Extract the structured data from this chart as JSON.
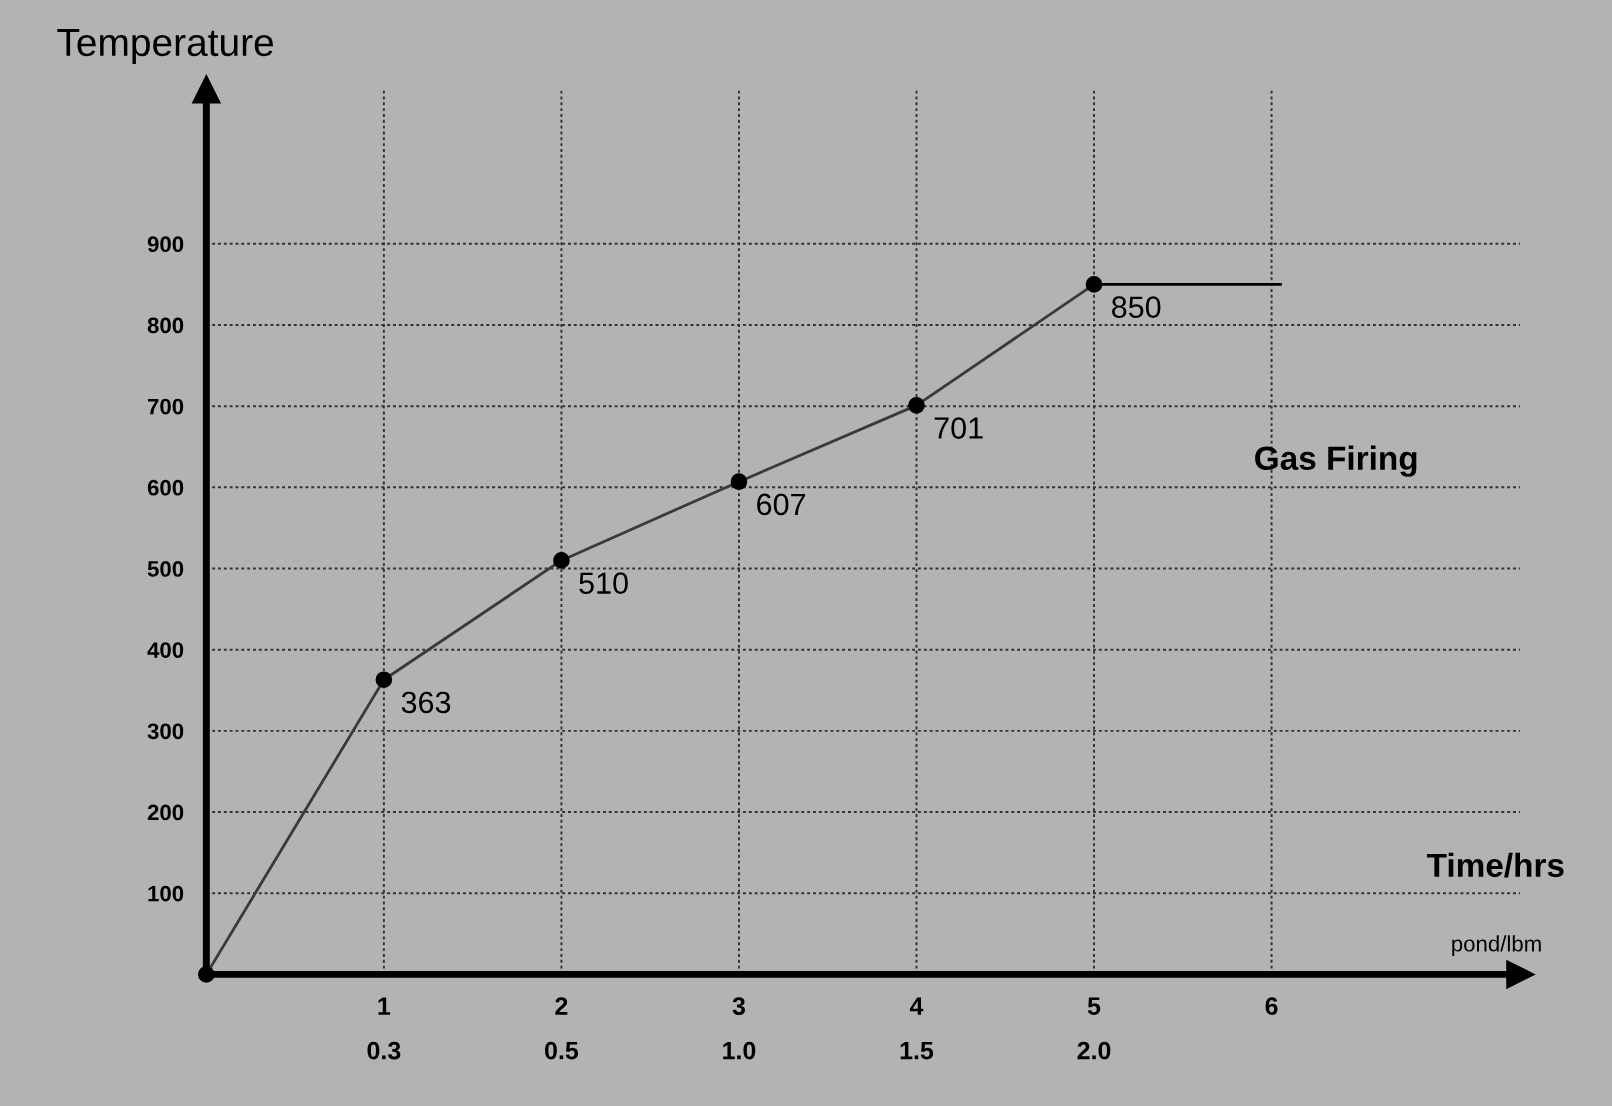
{
  "chart_data": {
    "type": "line",
    "ylabel": "Temperature",
    "xlabel": "Time/hrs",
    "annotations": [
      "Gas Firing",
      "pond/lbm",
      "0.3",
      "0.5",
      "1.0",
      "1.5",
      "2.0"
    ],
    "x": [
      0,
      1,
      2,
      3,
      4,
      5
    ],
    "series": [
      {
        "color": "#3a3a3a",
        "values": [
          0,
          363,
          510,
          607,
          701,
          850
        ],
        "value_labels": [
          null,
          "363",
          "510",
          "607",
          "701",
          "850"
        ],
        "marker": "circle"
      },
      {
        "color": "#000000",
        "x": [
          5,
          6.05
        ],
        "values": [
          850,
          850
        ]
      }
    ],
    "xlim": [
      0,
      7.4
    ],
    "ylim": [
      0,
      1090
    ],
    "xticks": [
      1,
      2,
      3,
      4,
      5,
      6
    ],
    "yticks": [
      100,
      200,
      300,
      400,
      500,
      600,
      700,
      800,
      900
    ],
    "grid": true
  }
}
